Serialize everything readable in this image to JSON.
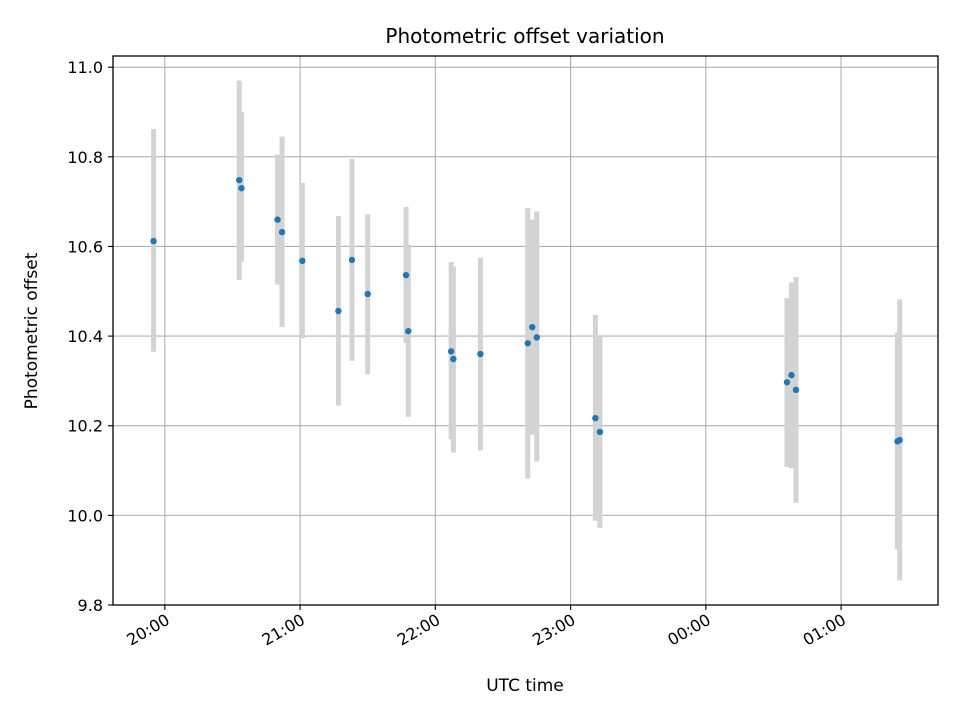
{
  "chart_data": {
    "type": "scatter",
    "title": "Photometric offset variation",
    "xlabel": "UTC time",
    "ylabel": "Photometric offset",
    "grid": true,
    "x_ticks": [
      "20:00",
      "21:00",
      "22:00",
      "23:00",
      "00:00",
      "01:00"
    ],
    "y_ticks": [
      "9.8",
      "10.0",
      "10.2",
      "10.4",
      "10.6",
      "10.8",
      "11.0"
    ],
    "ylim": [
      9.8,
      11.025
    ],
    "xlim_hours": [
      "19:37",
      "01:43"
    ],
    "colors": {
      "points": "#1f77b4",
      "errorbars": "#d3d3d3",
      "grid": "#b0b0b0"
    },
    "points": [
      {
        "time": "19:55",
        "y": 10.612,
        "lo": 10.365,
        "hi": 10.862
      },
      {
        "time": "20:33",
        "y": 10.748,
        "lo": 10.525,
        "hi": 10.97
      },
      {
        "time": "20:34",
        "y": 10.73,
        "lo": 10.565,
        "hi": 10.9
      },
      {
        "time": "20:50",
        "y": 10.66,
        "lo": 10.515,
        "hi": 10.805
      },
      {
        "time": "20:52",
        "y": 10.632,
        "lo": 10.42,
        "hi": 10.845
      },
      {
        "time": "21:01",
        "y": 10.568,
        "lo": 10.395,
        "hi": 10.742
      },
      {
        "time": "21:17",
        "y": 10.456,
        "lo": 10.245,
        "hi": 10.668
      },
      {
        "time": "21:23",
        "y": 10.57,
        "lo": 10.345,
        "hi": 10.795
      },
      {
        "time": "21:30",
        "y": 10.494,
        "lo": 10.315,
        "hi": 10.672
      },
      {
        "time": "21:47",
        "y": 10.536,
        "lo": 10.385,
        "hi": 10.688
      },
      {
        "time": "21:48",
        "y": 10.411,
        "lo": 10.22,
        "hi": 10.604
      },
      {
        "time": "22:07",
        "y": 10.366,
        "lo": 10.17,
        "hi": 10.565
      },
      {
        "time": "22:08",
        "y": 10.349,
        "lo": 10.14,
        "hi": 10.555
      },
      {
        "time": "22:20",
        "y": 10.36,
        "lo": 10.145,
        "hi": 10.575
      },
      {
        "time": "22:41",
        "y": 10.384,
        "lo": 10.082,
        "hi": 10.686
      },
      {
        "time": "22:43",
        "y": 10.42,
        "lo": 10.18,
        "hi": 10.66
      },
      {
        "time": "22:45",
        "y": 10.397,
        "lo": 10.12,
        "hi": 10.678
      },
      {
        "time": "23:11",
        "y": 10.217,
        "lo": 9.988,
        "hi": 10.447
      },
      {
        "time": "23:13",
        "y": 10.186,
        "lo": 9.972,
        "hi": 10.4
      },
      {
        "time": "00:36",
        "y": 10.297,
        "lo": 10.108,
        "hi": 10.485
      },
      {
        "time": "00:38",
        "y": 10.313,
        "lo": 10.105,
        "hi": 10.52
      },
      {
        "time": "00:40",
        "y": 10.28,
        "lo": 10.028,
        "hi": 10.532
      },
      {
        "time": "01:25",
        "y": 10.165,
        "lo": 9.925,
        "hi": 10.408
      },
      {
        "time": "01:26",
        "y": 10.168,
        "lo": 9.855,
        "hi": 10.482
      }
    ]
  }
}
